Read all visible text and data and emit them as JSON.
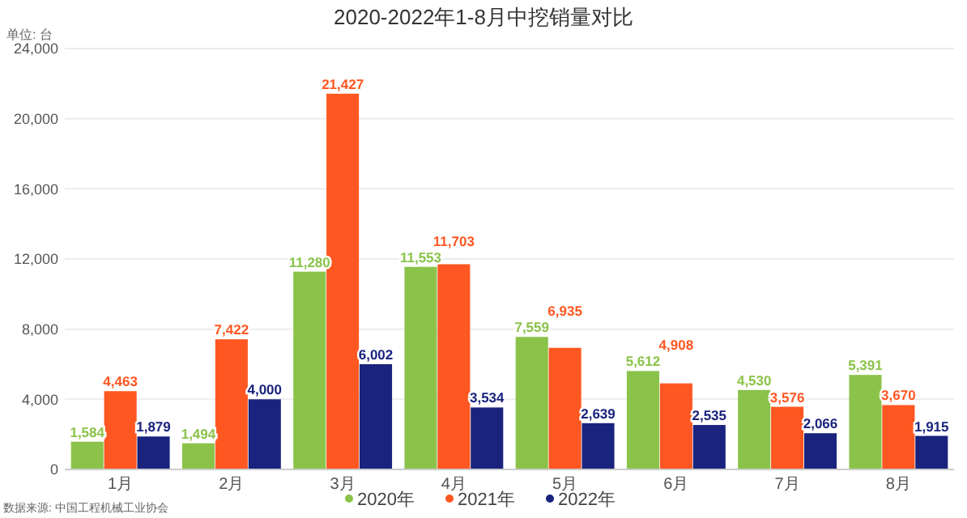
{
  "chart_data": {
    "type": "bar",
    "title": "2020-2022年1-8月中挖销量对比",
    "categories": [
      "1月",
      "2月",
      "3月",
      "4月",
      "5月",
      "6月",
      "7月",
      "8月"
    ],
    "series": [
      {
        "name": "2020年",
        "color": "#8bc34a",
        "values": [
          1584,
          1494,
          11280,
          11553,
          7559,
          5612,
          4530,
          5391
        ],
        "value_labels": [
          "1,584",
          "1,494",
          "11,280",
          "11,553",
          "7,559",
          "5,612",
          "4,530",
          "5,391"
        ]
      },
      {
        "name": "2021年",
        "color": "#ff5722",
        "values": [
          4463,
          7422,
          21427,
          11703,
          6935,
          4908,
          3576,
          3670
        ],
        "value_labels": [
          "4,463",
          "7,422",
          "21,427",
          "11,703",
          "6,935",
          "4,908",
          "3,576",
          "3,670"
        ]
      },
      {
        "name": "2022年",
        "color": "#1a237e",
        "values": [
          1879,
          4000,
          6002,
          3534,
          2639,
          2535,
          2066,
          1915
        ],
        "value_labels": [
          "1,879",
          "4,000",
          "6,002",
          "3,534",
          "2,639",
          "2,535",
          "2,066",
          "1,915"
        ]
      }
    ],
    "ylim": [
      0,
      24000
    ],
    "yticks": [
      0,
      {
        "value": 4000,
        "label": "4,000"
      },
      {
        "value": 8000,
        "label": "8,000"
      },
      {
        "value": 12000,
        "label": "12,000"
      },
      {
        "value": 16000,
        "label": "16,000"
      },
      {
        "value": 20000,
        "label": "20,000"
      },
      {
        "value": 24000,
        "label": "24,000"
      }
    ],
    "grid": "y",
    "legend": "bottom",
    "annotations": [
      "单位: 台",
      "数据来源: 中国工程机械工业协会"
    ]
  }
}
